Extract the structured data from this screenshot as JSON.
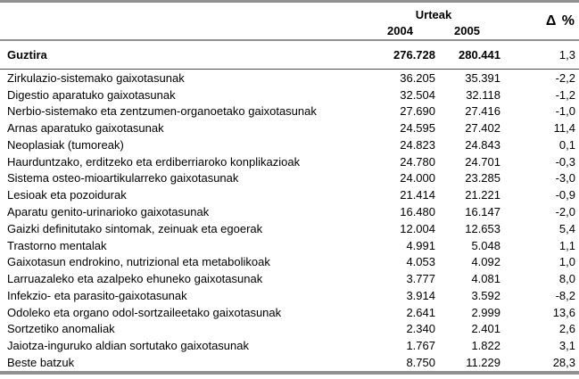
{
  "table": {
    "header": {
      "years_group_label": "Urteak",
      "year_columns": [
        "2004",
        "2005"
      ],
      "delta_label": "Δ %"
    },
    "total_row": {
      "label": "Guztira",
      "y2004": "276.728",
      "y2005": "280.441",
      "delta": "1,3"
    },
    "rows": [
      {
        "label": "Zirkulazio-sistemako gaixotasunak",
        "y2004": "36.205",
        "y2005": "35.391",
        "delta": "-2,2"
      },
      {
        "label": "Digestio aparatuko gaixotasunak",
        "y2004": "32.504",
        "y2005": "32.118",
        "delta": "-1,2"
      },
      {
        "label": "Nerbio-sistemako eta zentzumen-organoetako gaixotasunak",
        "y2004": "27.690",
        "y2005": "27.416",
        "delta": "-1,0"
      },
      {
        "label": "Arnas aparatuko gaixotasunak",
        "y2004": "24.595",
        "y2005": "27.402",
        "delta": "11,4"
      },
      {
        "label": "Neoplasiak (tumoreak)",
        "y2004": "24.823",
        "y2005": "24.843",
        "delta": "0,1"
      },
      {
        "label": "Haurduntzako, erditzeko eta erdiberriaroko konplikazioak",
        "y2004": "24.780",
        "y2005": "24.701",
        "delta": "-0,3"
      },
      {
        "label": "Sistema osteo-mioartikularreko gaixotasunak",
        "y2004": "24.000",
        "y2005": "23.285",
        "delta": "-3,0"
      },
      {
        "label": "Lesioak eta pozoidurak",
        "y2004": "21.414",
        "y2005": "21.221",
        "delta": "-0,9"
      },
      {
        "label": "Aparatu genito-urinarioko gaixotasunak",
        "y2004": "16.480",
        "y2005": "16.147",
        "delta": "-2,0"
      },
      {
        "label": "Gaizki definitutako sintomak, zeinuak eta egoerak",
        "y2004": "12.004",
        "y2005": "12.653",
        "delta": "5,4"
      },
      {
        "label": "Trastorno mentalak",
        "y2004": "4.991",
        "y2005": "5.048",
        "delta": "1,1"
      },
      {
        "label": "Gaixotasun endrokino, nutrizional eta metabolikoak",
        "y2004": "4.053",
        "y2005": "4.092",
        "delta": "1,0"
      },
      {
        "label": "Larruazaleko eta azalpeko ehuneko gaixotasunak",
        "y2004": "3.777",
        "y2005": "4.081",
        "delta": "8,0"
      },
      {
        "label": "Infekzio- eta parasito-gaixotasunak",
        "y2004": "3.914",
        "y2005": "3.592",
        "delta": "-8,2"
      },
      {
        "label": "Odoleko eta organo odol-sortzaileetako gaixotasunak",
        "y2004": "2.641",
        "y2005": "2.999",
        "delta": "13,6"
      },
      {
        "label": "Sortzetiko anomaliak",
        "y2004": "2.340",
        "y2005": "2.401",
        "delta": "2,6"
      },
      {
        "label": "Jaiotza-inguruko aldian sortutako gaixotasunak",
        "y2004": "1.767",
        "y2005": "1.822",
        "delta": "3,1"
      },
      {
        "label": "Beste batzuk",
        "y2004": "8.750",
        "y2005": "11.229",
        "delta": "28,3"
      }
    ]
  },
  "colors": {
    "rule_gray": "#919191",
    "rule_dark": "#4a4a4a",
    "background": "#ffffff",
    "text": "#000000"
  },
  "chart_data": {
    "type": "table",
    "title": "",
    "column_group": {
      "label": "Urteak",
      "spans": [
        "2004",
        "2005"
      ]
    },
    "columns": [
      "",
      "2004",
      "2005",
      "Δ %"
    ],
    "rows": [
      [
        "Guztira",
        276728,
        280441,
        1.3
      ],
      [
        "Zirkulazio-sistemako gaixotasunak",
        36205,
        35391,
        -2.2
      ],
      [
        "Digestio aparatuko gaixotasunak",
        32504,
        32118,
        -1.2
      ],
      [
        "Nerbio-sistemako eta zentzumen-organoetako gaixotasunak",
        27690,
        27416,
        -1.0
      ],
      [
        "Arnas aparatuko gaixotasunak",
        24595,
        27402,
        11.4
      ],
      [
        "Neoplasiak (tumoreak)",
        24823,
        24843,
        0.1
      ],
      [
        "Haurduntzako, erditzeko eta erdiberriaroko konplikazioak",
        24780,
        24701,
        -0.3
      ],
      [
        "Sistema osteo-mioartikularreko gaixotasunak",
        24000,
        23285,
        -3.0
      ],
      [
        "Lesioak eta pozoidurak",
        21414,
        21221,
        -0.9
      ],
      [
        "Aparatu genito-urinarioko gaixotasunak",
        16480,
        16147,
        -2.0
      ],
      [
        "Gaizki definitutako sintomak, zeinuak eta egoerak",
        12004,
        12653,
        5.4
      ],
      [
        "Trastorno mentalak",
        4991,
        5048,
        1.1
      ],
      [
        "Gaixotasun endrokino, nutrizional eta metabolikoak",
        4053,
        4092,
        1.0
      ],
      [
        "Larruazaleko eta azalpeko ehuneko gaixotasunak",
        3777,
        4081,
        8.0
      ],
      [
        "Infekzio- eta parasito-gaixotasunak",
        3914,
        3592,
        -8.2
      ],
      [
        "Odoleko eta organo odol-sortzaileetako gaixotasunak",
        2641,
        2999,
        13.6
      ],
      [
        "Sortzetiko anomaliak",
        2340,
        2401,
        2.6
      ],
      [
        "Jaiotza-inguruko aldian sortutako gaixotasunak",
        1767,
        1822,
        3.1
      ],
      [
        "Beste batzuk",
        8750,
        11229,
        28.3
      ]
    ]
  }
}
